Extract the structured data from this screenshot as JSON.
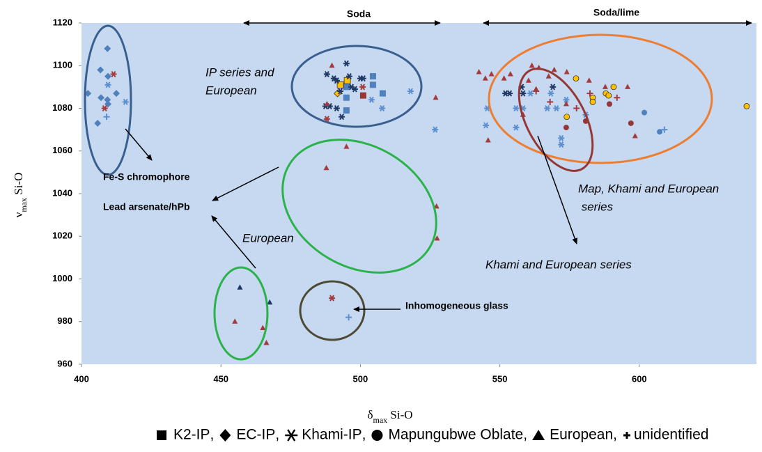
{
  "chart_data": {
    "type": "scatter",
    "x_label": [
      "δ",
      "max",
      " Si-O"
    ],
    "y_label": [
      "ν",
      "max",
      " Si-O"
    ],
    "xlim": [
      400,
      642
    ],
    "xticks": [
      400,
      450,
      500,
      550,
      600
    ],
    "ylim": [
      960,
      1120
    ],
    "yticks": [
      960,
      980,
      1000,
      1020,
      1040,
      1060,
      1080,
      1100,
      1120
    ],
    "background": "#c6d9f1",
    "legend_separator": ",",
    "annotations": [
      {
        "lines": [
          "Soda"
        ]
      },
      {
        "lines": [
          "Soda/lime"
        ]
      },
      {
        "lines": [
          "IP series and",
          "European"
        ]
      },
      {
        "lines": [
          "Fe-S chromophore"
        ]
      },
      {
        "lines": [
          "Lead arsenate/hPb"
        ]
      },
      {
        "lines": [
          "European"
        ]
      },
      {
        "lines": [
          "Inhomogeneous glass"
        ]
      },
      {
        "lines": [
          "Map, Khami and European",
          " series"
        ]
      },
      {
        "lines": [
          "Khami and European series"
        ]
      }
    ],
    "series": [
      {
        "name": "K2-IP",
        "marker": "square",
        "x": [
          495,
          495,
          495,
          504.5,
          504.5,
          508,
          495.3,
          492.8,
          501
        ],
        "values": [
          1090,
          1085,
          1079,
          1095,
          1091,
          1087,
          1093,
          1091,
          1086
        ],
        "colors": [
          "#4f81bd",
          "#4f81bd",
          "#4f81bd",
          "#4f81bd",
          "#4f81bd",
          "#4f81bd",
          "#ffc000",
          "#ffc000",
          "#953735"
        ]
      },
      {
        "name": "EC-IP",
        "marker": "diamond",
        "x": [
          402.3,
          406.8,
          409.3,
          409.5,
          407,
          409.3,
          409.5,
          412.5,
          405.8,
          491.8
        ],
        "values": [
          1087,
          1098,
          1108,
          1095,
          1085,
          1084,
          1082,
          1087,
          1073,
          1087
        ],
        "colors": [
          "#4f81bd",
          "#4f81bd",
          "#4f81bd",
          "#4f81bd",
          "#4f81bd",
          "#4f81bd",
          "#4f81bd",
          "#4f81bd",
          "#4f81bd",
          "#ffc000"
        ]
      },
      {
        "name": "Khami-IP",
        "marker": "asterisk",
        "x": [
          495,
          488,
          491.5,
          490.5,
          500,
          501,
          496.8,
          498,
          492.8,
          489,
          491.5,
          493.3,
          487.5,
          496,
          557.8,
          558.3,
          569,
          552,
          553.5,
          408.3,
          411.5,
          488,
          500.8,
          489.8,
          409.5,
          415.8,
          518,
          526.8,
          507.8,
          504,
          561,
          567,
          568.3,
          573.8,
          555.8,
          555.8,
          572,
          572,
          558.3,
          570.3,
          580.8,
          545.5,
          545
        ],
        "values": [
          1101,
          1096,
          1093,
          1094,
          1094,
          1094,
          1090,
          1089,
          1088,
          1081,
          1080,
          1076,
          1081,
          1095,
          1090,
          1087,
          1090,
          1087,
          1087,
          1080,
          1096,
          1075,
          1090,
          991,
          1091,
          1083,
          1088,
          1070,
          1080,
          1084,
          1087,
          1080,
          1087,
          1084,
          1080,
          1071,
          1066,
          1063,
          1080,
          1080,
          1077,
          1080,
          1072
        ],
        "colors": [
          "#1f3864",
          "#1f3864",
          "#1f3864",
          "#1f3864",
          "#1f3864",
          "#1f3864",
          "#1f3864",
          "#1f3864",
          "#1f3864",
          "#1f3864",
          "#1f3864",
          "#1f3864",
          "#1f3864",
          "#1f3864",
          "#1f3864",
          "#1f3864",
          "#1f3864",
          "#1f3864",
          "#1f3864",
          "#a5393b",
          "#a5393b",
          "#a5393b",
          "#a5393b",
          "#a5393b",
          "#5b8fd0",
          "#5b8fd0",
          "#5b8fd0",
          "#5b8fd0",
          "#5b8fd0",
          "#5b8fd0",
          "#5b8fd0",
          "#5b8fd0",
          "#5b8fd0",
          "#5b8fd0",
          "#5b8fd0",
          "#5b8fd0",
          "#5b8fd0",
          "#5b8fd0",
          "#5b8fd0",
          "#5b8fd0",
          "#5b8fd0",
          "#5b8fd0",
          "#5b8fd0"
        ]
      },
      {
        "name": "Mapungubwe Oblate",
        "marker": "circle",
        "x": [
          577.3,
          583.3,
          583.3,
          588,
          589,
          590.8,
          638.5,
          574,
          573.8,
          580.8,
          589.3,
          597,
          601.8,
          607.3
        ],
        "values": [
          1094,
          1085,
          1083,
          1087,
          1086,
          1090,
          1081,
          1076,
          1071,
          1074,
          1082,
          1073,
          1078,
          1069
        ],
        "colors": [
          "#ffc000",
          "#ffc000",
          "#ffc000",
          "#ffc000",
          "#ffc000",
          "#ffc000",
          "#ffc000",
          "#ffc000",
          "#953735",
          "#953735",
          "#953735",
          "#953735",
          "#4f81bd",
          "#4f81bd"
        ]
      },
      {
        "name": "European",
        "marker": "triangle",
        "x": [
          489.8,
          488,
          527,
          487.8,
          495,
          527.3,
          527.5,
          455,
          465,
          466.3,
          551.5,
          553.8,
          561.5,
          564,
          567.5,
          569.5,
          574,
          582,
          587.8,
          595.8,
          598.5,
          573.8,
          544.8,
          547,
          560.3,
          563,
          558.3,
          545.8,
          542.5,
          456.8,
          467.5
        ],
        "values": [
          1100,
          1082,
          1085,
          1052,
          1062,
          1034,
          1019,
          980,
          977,
          970,
          1094,
          1096,
          1100,
          1099,
          1095,
          1098,
          1097,
          1093,
          1090,
          1090,
          1067,
          1082,
          1094,
          1096,
          1093,
          1089,
          1077,
          1065,
          1097,
          996,
          989
        ],
        "colors": [
          "#a5393b",
          "#a5393b",
          "#a5393b",
          "#a5393b",
          "#a5393b",
          "#a5393b",
          "#a5393b",
          "#a5393b",
          "#a5393b",
          "#a5393b",
          "#a5393b",
          "#a5393b",
          "#a5393b",
          "#a5393b",
          "#a5393b",
          "#a5393b",
          "#a5393b",
          "#a5393b",
          "#a5393b",
          "#a5393b",
          "#a5393b",
          "#a5393b",
          "#a5393b",
          "#a5393b",
          "#a5393b",
          "#a5393b",
          "#a5393b",
          "#a5393b",
          "#a5393b",
          "#1f3864",
          "#1f3864"
        ]
      },
      {
        "name": "unidentified",
        "marker": "plus",
        "x": [
          409,
          495.8,
          609,
          577.5,
          582.3,
          592,
          568,
          563
        ],
        "values": [
          1076,
          982,
          1070,
          1080,
          1087,
          1085,
          1083,
          1088
        ],
        "colors": [
          "#5b8fd0",
          "#5b8fd0",
          "#5b8fd0",
          "#a5393b",
          "#a5393b",
          "#a5393b",
          "#a5393b",
          "#a5393b"
        ]
      }
    ]
  }
}
